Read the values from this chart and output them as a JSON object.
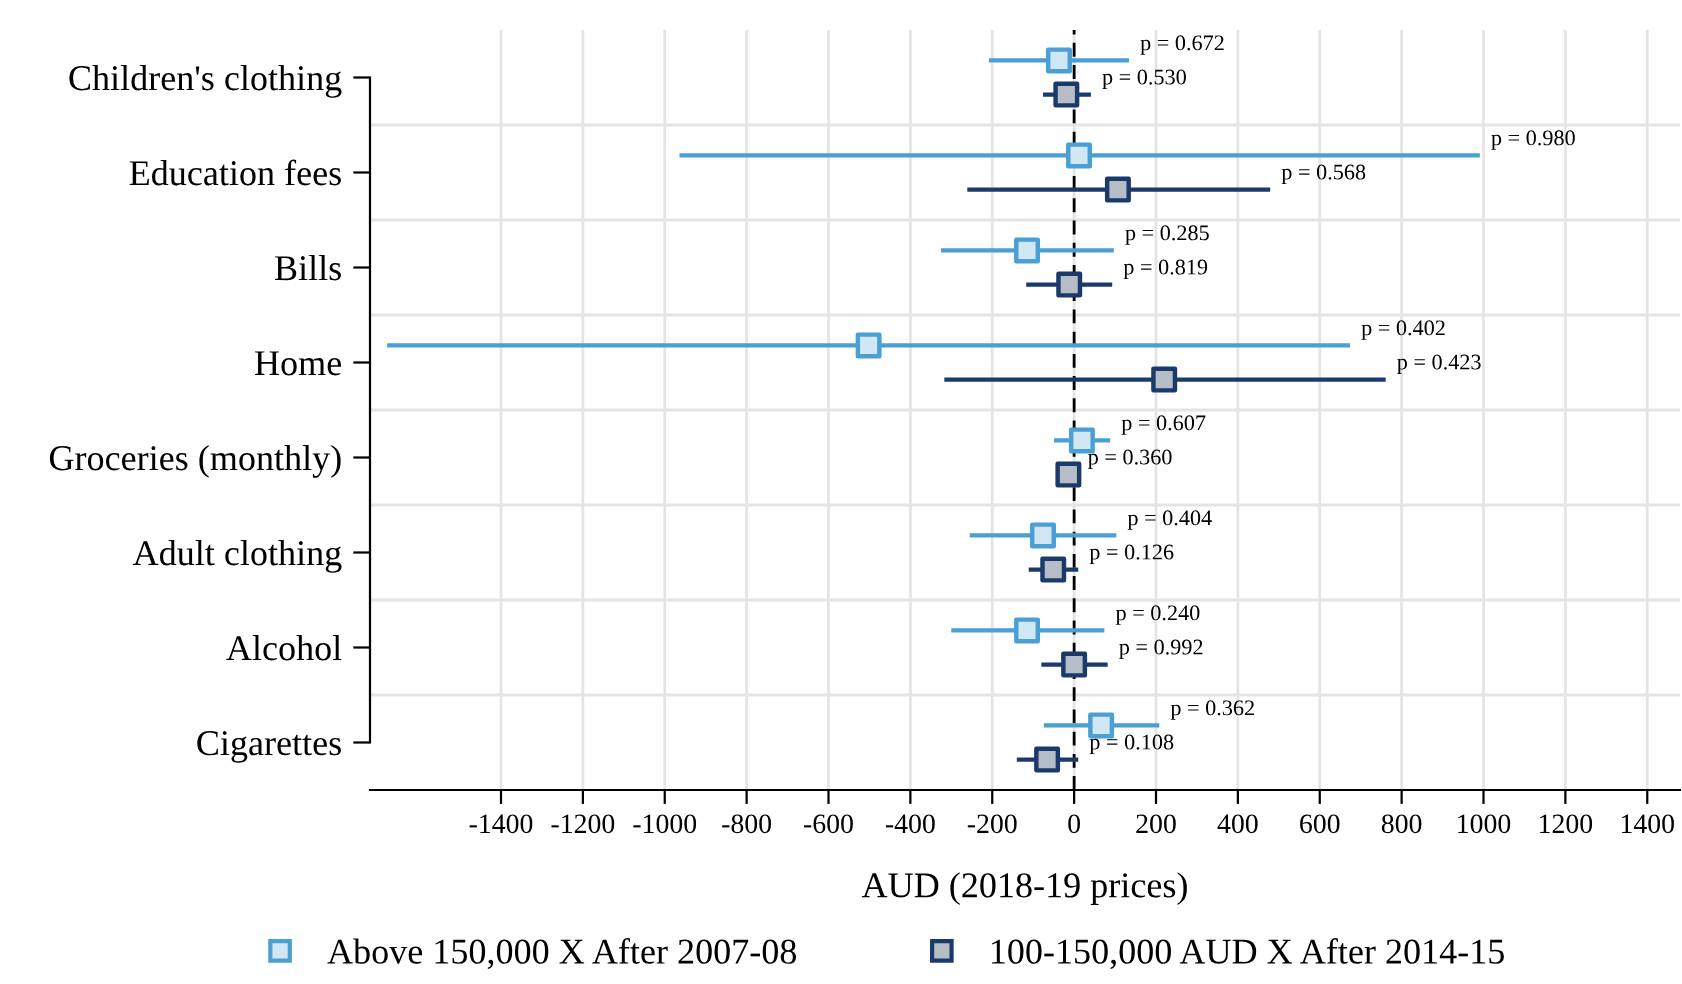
{
  "chart_data": {
    "type": "scatter",
    "orientation": "horizontal",
    "categories": [
      "Children's clothing",
      "Education fees",
      "Bills",
      "Home",
      "Groceries (monthly)",
      "Adult clothing",
      "Alcohol",
      "Cigarettes"
    ],
    "series": [
      {
        "name": "Above 150,000 X After 2007-08",
        "color": "#4a9fd4",
        "values": [
          -37,
          12,
          -115,
          -502,
          19,
          -76,
          -115,
          66
        ],
        "errors": [
          [
            -208,
            134
          ],
          [
            -964,
            991
          ],
          [
            -325,
            97
          ],
          [
            -1678,
            674
          ],
          [
            -49,
            88
          ],
          [
            -255,
            103
          ],
          [
            -300,
            74
          ],
          [
            -74,
            208
          ]
        ]
      },
      {
        "name": "100-150,000 AUD X After 2014-15",
        "color": "#1a3a6b",
        "values": [
          -19,
          107,
          -12,
          220,
          -14,
          -51,
          0,
          -66
        ],
        "errors": [
          [
            -76,
            41
          ],
          [
            -261,
            479
          ],
          [
            -117,
            93
          ],
          [
            -317,
            761
          ],
          [
            -37,
            6
          ],
          [
            -111,
            10
          ],
          [
            -80,
            82
          ],
          [
            -140,
            10
          ]
        ]
      }
    ],
    "xlim": [
      -1720,
      1480
    ],
    "xticks": [
      -1400,
      -1200,
      -1000,
      -800,
      -600,
      -400,
      -200,
      0,
      200,
      400,
      600,
      800,
      1000,
      1200,
      1400
    ],
    "xlabel": "AUD (2018-19 prices)",
    "ref_lines": [
      {
        "axis": "x",
        "value": 0,
        "color": "#000000",
        "line_style": "dashed"
      }
    ],
    "annotations": [
      "p = 0.672",
      "p = 0.980",
      "p = 0.285",
      "p = 0.402",
      "p = 0.607",
      "p = 0.404",
      "p = 0.240",
      "p = 0.362",
      "p = 0.530",
      "p = 0.568",
      "p = 0.819",
      "p = 0.423",
      "p = 0.360",
      "p = 0.126",
      "p = 0.992",
      "p = 0.108"
    ],
    "grid": true,
    "marker": "square",
    "legend": "bottom"
  }
}
